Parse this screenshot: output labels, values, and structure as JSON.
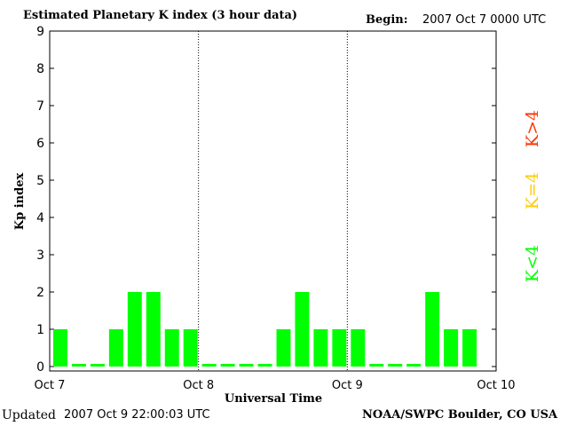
{
  "header": {
    "title": "Estimated Planetary K index (3 hour data)",
    "begin_label": "Begin:",
    "begin_value": "2007 Oct 7 0000 UTC"
  },
  "footer": {
    "updated_label": "Updated",
    "updated_value": "2007 Oct  9 22:00:03 UTC",
    "credit": "NOAA/SWPC Boulder, CO USA"
  },
  "legend": {
    "items": [
      {
        "label": "K<4",
        "color": "#00ff00"
      },
      {
        "label": "K=4",
        "color": "#ffcc00"
      },
      {
        "label": "K>4",
        "color": "#ff3300"
      }
    ]
  },
  "chart_data": {
    "type": "bar",
    "xlabel": "Universal Time",
    "ylabel": "Kp index",
    "ylim": [
      0,
      9
    ],
    "yticks": [
      0,
      1,
      2,
      3,
      4,
      5,
      6,
      7,
      8,
      9
    ],
    "xtick_labels": [
      "Oct 7",
      "Oct 8",
      "Oct 9",
      "Oct 10"
    ],
    "interval_hours": 3,
    "values": [
      1,
      0,
      0,
      1,
      2,
      2,
      1,
      1,
      0,
      0,
      0,
      0,
      1,
      2,
      1,
      1,
      1,
      0,
      0,
      0,
      2,
      1,
      1
    ],
    "bar_color": "#00ff00",
    "day_separators": "dotted"
  }
}
